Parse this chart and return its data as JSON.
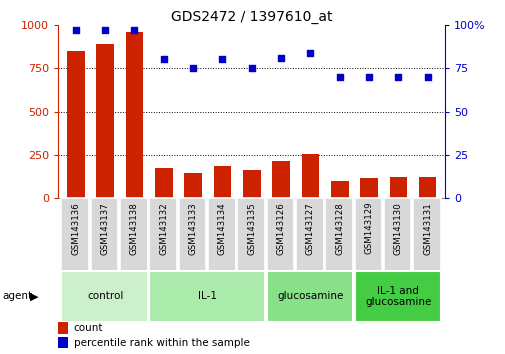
{
  "title": "GDS2472 / 1397610_at",
  "samples": [
    "GSM143136",
    "GSM143137",
    "GSM143138",
    "GSM143132",
    "GSM143133",
    "GSM143134",
    "GSM143135",
    "GSM143126",
    "GSM143127",
    "GSM143128",
    "GSM143129",
    "GSM143130",
    "GSM143131"
  ],
  "counts": [
    850,
    890,
    960,
    175,
    145,
    185,
    160,
    215,
    255,
    100,
    115,
    120,
    120
  ],
  "percentiles": [
    97,
    97,
    97,
    80,
    75,
    80,
    75,
    81,
    84,
    70,
    70,
    70,
    70
  ],
  "groups": [
    {
      "label": "control",
      "indices": [
        0,
        1,
        2
      ]
    },
    {
      "label": "IL-1",
      "indices": [
        3,
        4,
        5,
        6
      ]
    },
    {
      "label": "glucosamine",
      "indices": [
        7,
        8,
        9
      ]
    },
    {
      "label": "IL-1 and\nglucosamine",
      "indices": [
        10,
        11,
        12
      ]
    }
  ],
  "group_colors": [
    "#ccf0cc",
    "#aaeaaa",
    "#88e088",
    "#44cc44"
  ],
  "bar_color": "#cc2200",
  "dot_color": "#0000cc",
  "left_axis_color": "#cc2200",
  "right_axis_color": "#0000cc",
  "ylim_left": [
    0,
    1000
  ],
  "ylim_right": [
    0,
    100
  ],
  "yticks_left": [
    0,
    250,
    500,
    750,
    1000
  ],
  "yticks_right": [
    0,
    25,
    50,
    75,
    100
  ],
  "bg_color": "#ffffff",
  "sample_bg_color": "#d8d8d8",
  "legend_count_label": "count",
  "legend_pct_label": "percentile rank within the sample",
  "agent_label": "agent"
}
